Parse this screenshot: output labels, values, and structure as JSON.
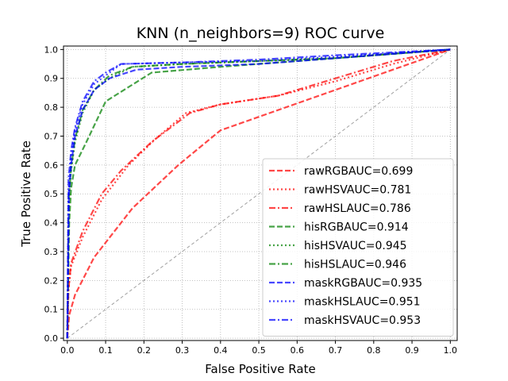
{
  "chart_data": {
    "type": "line",
    "title": "KNN (n_neighbors=9) ROC curve",
    "xlabel": "False Positive Rate",
    "ylabel": "True Positive Rate",
    "xlim": [
      0,
      1
    ],
    "ylim": [
      0,
      1
    ],
    "xticks": [
      "0.0",
      "0.1",
      "0.2",
      "0.3",
      "0.4",
      "0.5",
      "0.6",
      "0.7",
      "0.8",
      "0.9",
      "1.0"
    ],
    "yticks": [
      "0.0",
      "0.1",
      "0.2",
      "0.3",
      "0.4",
      "0.5",
      "0.6",
      "0.7",
      "0.8",
      "0.9",
      "1.0"
    ],
    "grid": true,
    "legend_position": "bottom-right",
    "diagonal": {
      "x": [
        0,
        1
      ],
      "y": [
        0,
        1
      ],
      "color": "#a0a0a0",
      "style": "dashed"
    },
    "series": [
      {
        "name": "rawRGBAUC=0.699",
        "color": "#ff0000",
        "style": "dashed",
        "x": [
          0,
          0.005,
          0.02,
          0.07,
          0.17,
          0.29,
          0.4,
          0.55,
          0.7,
          0.85,
          1.0
        ],
        "y": [
          0,
          0.08,
          0.15,
          0.28,
          0.45,
          0.6,
          0.72,
          0.79,
          0.86,
          0.93,
          1.0
        ]
      },
      {
        "name": "rawHSVAUC=0.781",
        "color": "#ff0000",
        "style": "dotted",
        "x": [
          0,
          0.003,
          0.01,
          0.04,
          0.09,
          0.16,
          0.23,
          0.31,
          0.4,
          0.55,
          0.7,
          0.85,
          1.0
        ],
        "y": [
          0,
          0.17,
          0.25,
          0.35,
          0.48,
          0.6,
          0.69,
          0.78,
          0.81,
          0.84,
          0.89,
          0.95,
          1.0
        ]
      },
      {
        "name": "rawHSLAUC=0.786",
        "color": "#ff0000",
        "style": "dashdot",
        "x": [
          0,
          0.003,
          0.01,
          0.04,
          0.09,
          0.14,
          0.22,
          0.32,
          0.4,
          0.55,
          0.7,
          0.85,
          1.0
        ],
        "y": [
          0,
          0.17,
          0.26,
          0.37,
          0.5,
          0.58,
          0.68,
          0.78,
          0.81,
          0.84,
          0.9,
          0.96,
          1.0
        ]
      },
      {
        "name": "hisRGBAUC=0.914",
        "color": "#008000",
        "style": "dashed",
        "x": [
          0,
          0.005,
          0.01,
          0.02,
          0.05,
          0.1,
          0.22,
          0.4,
          0.6,
          0.8,
          1.0
        ],
        "y": [
          0,
          0.4,
          0.52,
          0.6,
          0.68,
          0.82,
          0.92,
          0.94,
          0.96,
          0.98,
          1.0
        ]
      },
      {
        "name": "hisHSVAUC=0.945",
        "color": "#008000",
        "style": "dotted",
        "x": [
          0,
          0.004,
          0.01,
          0.02,
          0.04,
          0.07,
          0.11,
          0.17,
          0.3,
          0.5,
          0.7,
          1.0
        ],
        "y": [
          0,
          0.48,
          0.58,
          0.68,
          0.78,
          0.86,
          0.9,
          0.94,
          0.95,
          0.96,
          0.97,
          1.0
        ]
      },
      {
        "name": "hisHSLAUC=0.946",
        "color": "#008000",
        "style": "dashdot",
        "x": [
          0,
          0.004,
          0.01,
          0.02,
          0.04,
          0.07,
          0.11,
          0.17,
          0.3,
          0.5,
          0.7,
          1.0
        ],
        "y": [
          0,
          0.48,
          0.59,
          0.69,
          0.79,
          0.86,
          0.91,
          0.94,
          0.95,
          0.96,
          0.97,
          1.0
        ]
      },
      {
        "name": "maskRGBAUC=0.935",
        "color": "#0000ff",
        "style": "dashed",
        "x": [
          0,
          0.004,
          0.01,
          0.02,
          0.04,
          0.07,
          0.11,
          0.18,
          0.3,
          0.5,
          0.7,
          1.0
        ],
        "y": [
          0,
          0.5,
          0.6,
          0.7,
          0.79,
          0.86,
          0.9,
          0.93,
          0.94,
          0.95,
          0.97,
          1.0
        ]
      },
      {
        "name": "maskHSLAUC=0.951",
        "color": "#0000ff",
        "style": "dotted",
        "x": [
          0,
          0.004,
          0.01,
          0.02,
          0.04,
          0.07,
          0.1,
          0.14,
          0.3,
          0.5,
          0.7,
          1.0
        ],
        "y": [
          0,
          0.52,
          0.63,
          0.72,
          0.81,
          0.88,
          0.91,
          0.95,
          0.955,
          0.96,
          0.975,
          1.0
        ]
      },
      {
        "name": "maskHSVAUC=0.953",
        "color": "#0000ff",
        "style": "dashdot",
        "x": [
          0,
          0.003,
          0.01,
          0.02,
          0.04,
          0.07,
          0.1,
          0.14,
          0.3,
          0.5,
          0.7,
          1.0
        ],
        "y": [
          0,
          0.55,
          0.65,
          0.73,
          0.82,
          0.89,
          0.92,
          0.95,
          0.955,
          0.965,
          0.98,
          1.0
        ]
      }
    ]
  }
}
